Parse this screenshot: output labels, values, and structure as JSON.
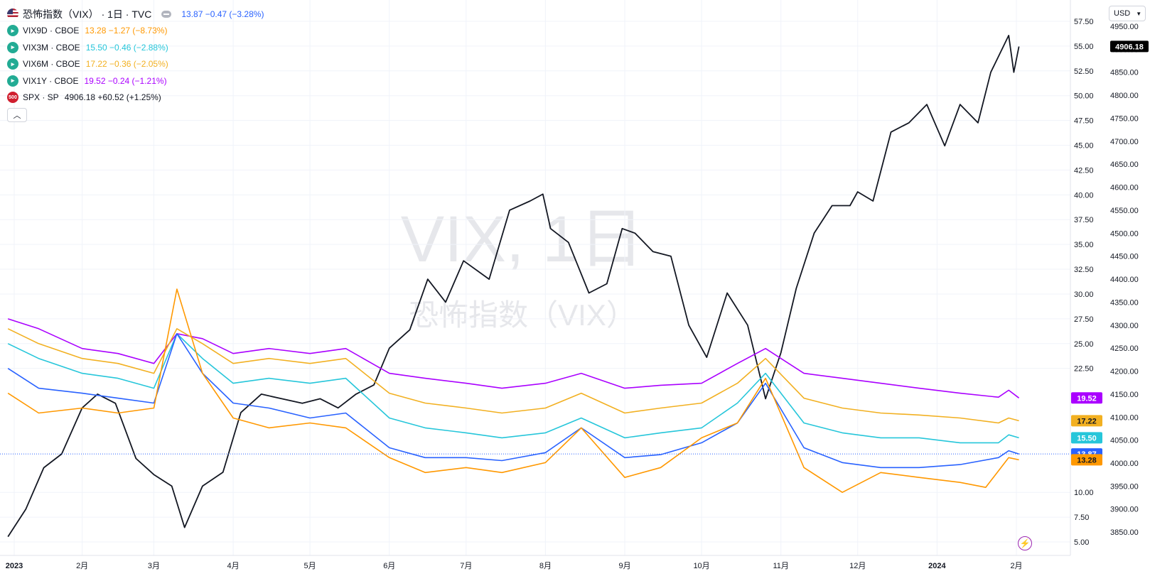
{
  "header": {
    "title": "恐怖指数（VIX）",
    "interval": "· 1日 · TVC",
    "values": "13.87  −0.47 (−3.28%)",
    "values_color": "#2962ff"
  },
  "legend": [
    {
      "symbol": "VIX9D · CBOE",
      "values": "13.28  −1.27 (−8.73%)",
      "color": "#ff9800"
    },
    {
      "symbol": "VIX3M · CBOE",
      "values": "15.50  −0.46 (−2.88%)",
      "color": "#26c6da"
    },
    {
      "symbol": "VIX6M · CBOE",
      "values": "17.22  −0.36 (−2.05%)",
      "color": "#f2b021"
    },
    {
      "symbol": "VIX1Y · CBOE",
      "values": "19.52  −0.24 (−1.21%)",
      "color": "#aa00ff"
    },
    {
      "symbol": "SPX · SP",
      "values": "4906.18  +60.52 (+1.25%)",
      "color": "#131722"
    }
  ],
  "spx_icon_text": "500",
  "currency": "USD",
  "watermark": {
    "line1": "VIX, 1日",
    "line2": "恐怖指数（VIX）"
  },
  "chart_data": {
    "type": "line",
    "x_tick_labels": [
      "2023",
      "2月",
      "3月",
      "4月",
      "5月",
      "6月",
      "7月",
      "8月",
      "9月",
      "10月",
      "11月",
      "12月",
      "2024",
      "2月"
    ],
    "x_range": [
      "2023-01-01",
      "2024-02-01"
    ],
    "y_axis_vix": {
      "ticks": [
        "5.00",
        "7.50",
        "10.00",
        "",
        "",
        "",
        "",
        "22.50",
        "25.00",
        "27.50",
        "30.00",
        "32.50",
        "35.00",
        "37.50",
        "40.00",
        "42.50",
        "45.00",
        "47.50",
        "50.00",
        "52.50",
        "55.00",
        "57.50"
      ],
      "ylim": [
        5,
        57.5
      ]
    },
    "y_axis_spx": {
      "ticks": [
        "3850.00",
        "3900.00",
        "3950.00",
        "4000.00",
        "4050.00",
        "4100.00",
        "4150.00",
        "4200.00",
        "4250.00",
        "4300.00",
        "4350.00",
        "4400.00",
        "4450.00",
        "4500.00",
        "4550.00",
        "4600.00",
        "4650.00",
        "4700.00",
        "4750.00",
        "4800.00",
        "4850.00",
        "4900.00",
        "4950.00"
      ],
      "ylim": [
        3810,
        4950
      ]
    },
    "last_value_labels": [
      {
        "text": "4906.18",
        "bg": "#000000",
        "axis": "spx",
        "value": 4906.18
      },
      {
        "text": "19.52",
        "bg": "#aa00ff",
        "axis": "vix",
        "value": 19.52
      },
      {
        "text": "17.22",
        "bg": "#f2b021",
        "axis": "vix",
        "value": 17.22
      },
      {
        "text": "15.50",
        "bg": "#26c6da",
        "axis": "vix",
        "value": 15.5
      },
      {
        "text": "13.87",
        "bg": "#2962ff",
        "axis": "vix",
        "value": 13.87
      },
      {
        "text": "13.28",
        "bg": "#ff9800",
        "axis": "vix",
        "value": 13.28
      }
    ],
    "current_price_line": {
      "axis": "vix",
      "value": 13.87,
      "color": "#2962ff"
    },
    "series": [
      {
        "axis": "spx",
        "color": "#131722",
        "width": 1.8,
        "points": [
          [
            "2023-01-03",
            3840
          ],
          [
            "2023-01-10",
            3900
          ],
          [
            "2023-01-17",
            3990
          ],
          [
            "2023-01-24",
            4020
          ],
          [
            "2023-02-01",
            4120
          ],
          [
            "2023-02-07",
            4150
          ],
          [
            "2023-02-14",
            4130
          ],
          [
            "2023-02-22",
            4010
          ],
          [
            "2023-03-01",
            3975
          ],
          [
            "2023-03-08",
            3950
          ],
          [
            "2023-03-13",
            3860
          ],
          [
            "2023-03-20",
            3950
          ],
          [
            "2023-03-28",
            3980
          ],
          [
            "2023-04-04",
            4110
          ],
          [
            "2023-04-12",
            4150
          ],
          [
            "2023-04-20",
            4140
          ],
          [
            "2023-04-28",
            4130
          ],
          [
            "2023-05-05",
            4140
          ],
          [
            "2023-05-12",
            4120
          ],
          [
            "2023-05-19",
            4150
          ],
          [
            "2023-05-26",
            4170
          ],
          [
            "2023-06-01",
            4250
          ],
          [
            "2023-06-09",
            4290
          ],
          [
            "2023-06-16",
            4400
          ],
          [
            "2023-06-23",
            4350
          ],
          [
            "2023-06-30",
            4440
          ],
          [
            "2023-07-10",
            4400
          ],
          [
            "2023-07-18",
            4550
          ],
          [
            "2023-07-26",
            4570
          ],
          [
            "2023-07-31",
            4585
          ],
          [
            "2023-08-03",
            4510
          ],
          [
            "2023-08-10",
            4480
          ],
          [
            "2023-08-18",
            4370
          ],
          [
            "2023-08-25",
            4390
          ],
          [
            "2023-08-31",
            4510
          ],
          [
            "2023-09-05",
            4500
          ],
          [
            "2023-09-12",
            4460
          ],
          [
            "2023-09-19",
            4450
          ],
          [
            "2023-09-26",
            4300
          ],
          [
            "2023-10-03",
            4230
          ],
          [
            "2023-10-11",
            4370
          ],
          [
            "2023-10-19",
            4300
          ],
          [
            "2023-10-26",
            4140
          ],
          [
            "2023-11-01",
            4240
          ],
          [
            "2023-11-07",
            4380
          ],
          [
            "2023-11-14",
            4500
          ],
          [
            "2023-11-21",
            4560
          ],
          [
            "2023-11-28",
            4560
          ],
          [
            "2023-12-01",
            4590
          ],
          [
            "2023-12-07",
            4570
          ],
          [
            "2023-12-14",
            4720
          ],
          [
            "2023-12-21",
            4740
          ],
          [
            "2023-12-28",
            4780
          ],
          [
            "2024-01-04",
            4690
          ],
          [
            "2024-01-10",
            4780
          ],
          [
            "2024-01-17",
            4740
          ],
          [
            "2024-01-22",
            4850
          ],
          [
            "2024-01-29",
            4930
          ],
          [
            "2024-01-31",
            4850
          ],
          [
            "2024-02-02",
            4906
          ]
        ]
      },
      {
        "axis": "vix",
        "color": "#aa00ff",
        "width": 1.6,
        "points": [
          [
            "2023-01-03",
            27.5
          ],
          [
            "2023-01-15",
            26.5
          ],
          [
            "2023-02-01",
            24.5
          ],
          [
            "2023-02-15",
            24.0
          ],
          [
            "2023-03-01",
            23.0
          ],
          [
            "2023-03-10",
            26.0
          ],
          [
            "2023-03-20",
            25.5
          ],
          [
            "2023-04-01",
            24.0
          ],
          [
            "2023-04-15",
            24.5
          ],
          [
            "2023-05-01",
            24.0
          ],
          [
            "2023-05-15",
            24.5
          ],
          [
            "2023-06-01",
            22.0
          ],
          [
            "2023-06-15",
            21.5
          ],
          [
            "2023-07-01",
            21.0
          ],
          [
            "2023-07-15",
            20.5
          ],
          [
            "2023-08-01",
            21.0
          ],
          [
            "2023-08-15",
            22.0
          ],
          [
            "2023-09-01",
            20.5
          ],
          [
            "2023-09-15",
            20.8
          ],
          [
            "2023-10-01",
            21.0
          ],
          [
            "2023-10-15",
            23.0
          ],
          [
            "2023-10-26",
            24.5
          ],
          [
            "2023-11-10",
            22.0
          ],
          [
            "2023-11-25",
            21.5
          ],
          [
            "2023-12-10",
            21.0
          ],
          [
            "2023-12-25",
            20.5
          ],
          [
            "2024-01-10",
            20.0
          ],
          [
            "2024-01-25",
            19.6
          ],
          [
            "2024-01-29",
            20.3
          ],
          [
            "2024-02-02",
            19.52
          ]
        ]
      },
      {
        "axis": "vix",
        "color": "#f2b021",
        "width": 1.6,
        "points": [
          [
            "2023-01-03",
            26.5
          ],
          [
            "2023-01-15",
            25.0
          ],
          [
            "2023-02-01",
            23.5
          ],
          [
            "2023-02-15",
            23.0
          ],
          [
            "2023-03-01",
            22.0
          ],
          [
            "2023-03-10",
            26.5
          ],
          [
            "2023-03-20",
            25.0
          ],
          [
            "2023-04-01",
            23.0
          ],
          [
            "2023-04-15",
            23.5
          ],
          [
            "2023-05-01",
            23.0
          ],
          [
            "2023-05-15",
            23.5
          ],
          [
            "2023-06-01",
            20.0
          ],
          [
            "2023-06-15",
            19.0
          ],
          [
            "2023-07-01",
            18.5
          ],
          [
            "2023-07-15",
            18.0
          ],
          [
            "2023-08-01",
            18.5
          ],
          [
            "2023-08-15",
            20.0
          ],
          [
            "2023-09-01",
            18.0
          ],
          [
            "2023-09-15",
            18.5
          ],
          [
            "2023-10-01",
            19.0
          ],
          [
            "2023-10-15",
            21.0
          ],
          [
            "2023-10-26",
            23.5
          ],
          [
            "2023-11-10",
            19.5
          ],
          [
            "2023-11-25",
            18.5
          ],
          [
            "2023-12-10",
            18.0
          ],
          [
            "2023-12-25",
            17.8
          ],
          [
            "2024-01-10",
            17.5
          ],
          [
            "2024-01-25",
            17.0
          ],
          [
            "2024-01-29",
            17.5
          ],
          [
            "2024-02-02",
            17.22
          ]
        ]
      },
      {
        "axis": "vix",
        "color": "#26c6da",
        "width": 1.6,
        "points": [
          [
            "2023-01-03",
            25.0
          ],
          [
            "2023-01-15",
            23.5
          ],
          [
            "2023-02-01",
            22.0
          ],
          [
            "2023-02-15",
            21.5
          ],
          [
            "2023-03-01",
            20.5
          ],
          [
            "2023-03-10",
            26.0
          ],
          [
            "2023-03-20",
            23.5
          ],
          [
            "2023-04-01",
            21.0
          ],
          [
            "2023-04-15",
            21.5
          ],
          [
            "2023-05-01",
            21.0
          ],
          [
            "2023-05-15",
            21.5
          ],
          [
            "2023-06-01",
            17.5
          ],
          [
            "2023-06-15",
            16.5
          ],
          [
            "2023-07-01",
            16.0
          ],
          [
            "2023-07-15",
            15.5
          ],
          [
            "2023-08-01",
            16.0
          ],
          [
            "2023-08-15",
            17.5
          ],
          [
            "2023-09-01",
            15.5
          ],
          [
            "2023-09-15",
            16.0
          ],
          [
            "2023-10-01",
            16.5
          ],
          [
            "2023-10-15",
            19.0
          ],
          [
            "2023-10-26",
            22.0
          ],
          [
            "2023-11-10",
            17.0
          ],
          [
            "2023-11-25",
            16.0
          ],
          [
            "2023-12-10",
            15.5
          ],
          [
            "2023-12-25",
            15.5
          ],
          [
            "2024-01-10",
            15.0
          ],
          [
            "2024-01-25",
            15.0
          ],
          [
            "2024-01-29",
            15.8
          ],
          [
            "2024-02-02",
            15.5
          ]
        ]
      },
      {
        "axis": "vix",
        "color": "#2962ff",
        "width": 1.6,
        "points": [
          [
            "2023-01-03",
            22.5
          ],
          [
            "2023-01-15",
            20.5
          ],
          [
            "2023-02-01",
            20.0
          ],
          [
            "2023-02-15",
            19.5
          ],
          [
            "2023-03-01",
            19.0
          ],
          [
            "2023-03-10",
            26.0
          ],
          [
            "2023-03-20",
            22.0
          ],
          [
            "2023-04-01",
            19.0
          ],
          [
            "2023-04-15",
            18.5
          ],
          [
            "2023-05-01",
            17.5
          ],
          [
            "2023-05-15",
            18.0
          ],
          [
            "2023-06-01",
            14.5
          ],
          [
            "2023-06-15",
            13.5
          ],
          [
            "2023-07-01",
            13.5
          ],
          [
            "2023-07-15",
            13.2
          ],
          [
            "2023-08-01",
            14.0
          ],
          [
            "2023-08-15",
            16.5
          ],
          [
            "2023-09-01",
            13.5
          ],
          [
            "2023-09-15",
            13.8
          ],
          [
            "2023-10-01",
            15.0
          ],
          [
            "2023-10-15",
            17.0
          ],
          [
            "2023-10-26",
            21.0
          ],
          [
            "2023-11-10",
            14.5
          ],
          [
            "2023-11-25",
            13.0
          ],
          [
            "2023-12-10",
            12.5
          ],
          [
            "2023-12-25",
            12.5
          ],
          [
            "2024-01-10",
            12.8
          ],
          [
            "2024-01-25",
            13.5
          ],
          [
            "2024-01-29",
            14.2
          ],
          [
            "2024-02-02",
            13.87
          ]
        ]
      },
      {
        "axis": "vix",
        "color": "#ff9800",
        "width": 1.6,
        "points": [
          [
            "2023-01-03",
            20.0
          ],
          [
            "2023-01-15",
            18.0
          ],
          [
            "2023-02-01",
            18.5
          ],
          [
            "2023-02-15",
            18.0
          ],
          [
            "2023-03-01",
            18.5
          ],
          [
            "2023-03-10",
            30.5
          ],
          [
            "2023-03-20",
            22.0
          ],
          [
            "2023-04-01",
            17.5
          ],
          [
            "2023-04-15",
            16.5
          ],
          [
            "2023-05-01",
            17.0
          ],
          [
            "2023-05-15",
            16.5
          ],
          [
            "2023-06-01",
            13.5
          ],
          [
            "2023-06-15",
            12.0
          ],
          [
            "2023-07-01",
            12.5
          ],
          [
            "2023-07-15",
            12.0
          ],
          [
            "2023-08-01",
            13.0
          ],
          [
            "2023-08-15",
            16.5
          ],
          [
            "2023-09-01",
            11.5
          ],
          [
            "2023-09-15",
            12.5
          ],
          [
            "2023-10-01",
            15.5
          ],
          [
            "2023-10-15",
            17.0
          ],
          [
            "2023-10-26",
            21.5
          ],
          [
            "2023-11-10",
            12.5
          ],
          [
            "2023-11-25",
            10.0
          ],
          [
            "2023-12-10",
            12.0
          ],
          [
            "2023-12-25",
            11.5
          ],
          [
            "2024-01-10",
            11.0
          ],
          [
            "2024-01-20",
            10.5
          ],
          [
            "2024-01-29",
            13.5
          ],
          [
            "2024-02-02",
            13.28
          ]
        ]
      }
    ]
  }
}
